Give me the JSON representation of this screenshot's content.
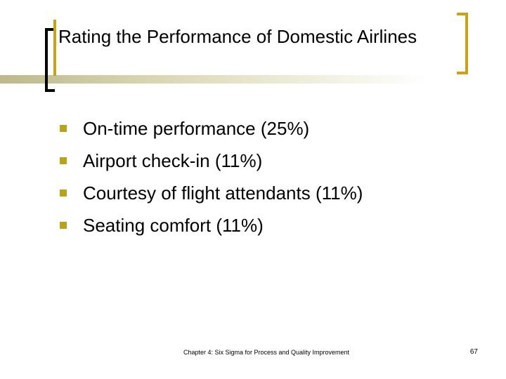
{
  "slide": {
    "title": "Rating the Performance of Domestic Airlines",
    "bullets": [
      {
        "text": "On-time performance (25%)"
      },
      {
        "text": "Airport check-in (11%)"
      },
      {
        "text": "Courtesy of flight attendants (11%)"
      },
      {
        "text": "Seating comfort (11%)"
      }
    ],
    "footer": "Chapter 4: Six Sigma for Process and Quality Improvement",
    "page_number": "67"
  },
  "colors": {
    "accent_gold": "#c8a415",
    "bullet_gold": "#b9a31b",
    "rule_olive": "#bdb98a",
    "text": "#000000",
    "background": "#ffffff"
  }
}
